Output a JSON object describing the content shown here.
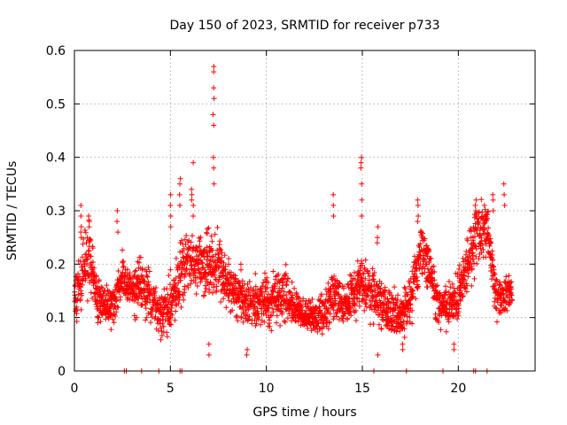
{
  "chart_data": {
    "type": "scatter",
    "title": "Day 150 of 2023, SRMTID for receiver p733",
    "xlabel": "GPS time / hours",
    "ylabel": "SRMTID / TECUs",
    "xlim": [
      0,
      24
    ],
    "ylim": [
      0,
      0.6
    ],
    "x_ticks": [
      0,
      5,
      10,
      15,
      20
    ],
    "x_tick_labels": [
      "0",
      "5",
      "10",
      "15",
      "20"
    ],
    "y_ticks": [
      0,
      0.1,
      0.2,
      0.3,
      0.4,
      0.5,
      0.6
    ],
    "y_tick_labels": [
      "0",
      "0.1",
      "0.2",
      "0.3",
      "0.4",
      "0.5",
      "0.6"
    ],
    "grid": true,
    "marker": "plus",
    "color": "#ff0000",
    "data_span_hours": [
      0,
      22.8
    ],
    "typical_range": [
      0.05,
      0.25
    ],
    "zero_value_times": [
      2.6,
      2.7,
      3.5,
      4.4,
      5.5,
      5.6,
      15.6,
      17.3,
      19.2,
      20.8,
      20.9,
      21.5
    ],
    "envelope": [
      {
        "x": 0.0,
        "mean": 0.13,
        "spread": 0.05
      },
      {
        "x": 0.5,
        "mean": 0.19,
        "spread": 0.07
      },
      {
        "x": 0.8,
        "mean": 0.22,
        "spread": 0.07
      },
      {
        "x": 1.2,
        "mean": 0.13,
        "spread": 0.04
      },
      {
        "x": 2.0,
        "mean": 0.12,
        "spread": 0.04
      },
      {
        "x": 2.5,
        "mean": 0.18,
        "spread": 0.05
      },
      {
        "x": 3.0,
        "mean": 0.15,
        "spread": 0.05
      },
      {
        "x": 3.5,
        "mean": 0.16,
        "spread": 0.05
      },
      {
        "x": 4.0,
        "mean": 0.14,
        "spread": 0.05
      },
      {
        "x": 4.5,
        "mean": 0.1,
        "spread": 0.04
      },
      {
        "x": 5.0,
        "mean": 0.13,
        "spread": 0.06
      },
      {
        "x": 5.5,
        "mean": 0.17,
        "spread": 0.07
      },
      {
        "x": 6.0,
        "mean": 0.21,
        "spread": 0.06
      },
      {
        "x": 6.5,
        "mean": 0.19,
        "spread": 0.06
      },
      {
        "x": 7.0,
        "mean": 0.2,
        "spread": 0.07
      },
      {
        "x": 7.5,
        "mean": 0.2,
        "spread": 0.06
      },
      {
        "x": 8.0,
        "mean": 0.16,
        "spread": 0.05
      },
      {
        "x": 9.0,
        "mean": 0.13,
        "spread": 0.05
      },
      {
        "x": 10.0,
        "mean": 0.13,
        "spread": 0.05
      },
      {
        "x": 11.0,
        "mean": 0.14,
        "spread": 0.05
      },
      {
        "x": 12.0,
        "mean": 0.1,
        "spread": 0.03
      },
      {
        "x": 13.0,
        "mean": 0.11,
        "spread": 0.04
      },
      {
        "x": 13.5,
        "mean": 0.14,
        "spread": 0.05
      },
      {
        "x": 14.0,
        "mean": 0.12,
        "spread": 0.04
      },
      {
        "x": 15.0,
        "mean": 0.17,
        "spread": 0.06
      },
      {
        "x": 16.0,
        "mean": 0.12,
        "spread": 0.05
      },
      {
        "x": 17.0,
        "mean": 0.1,
        "spread": 0.04
      },
      {
        "x": 17.5,
        "mean": 0.13,
        "spread": 0.05
      },
      {
        "x": 18.0,
        "mean": 0.23,
        "spread": 0.06
      },
      {
        "x": 18.5,
        "mean": 0.19,
        "spread": 0.05
      },
      {
        "x": 19.0,
        "mean": 0.12,
        "spread": 0.04
      },
      {
        "x": 19.5,
        "mean": 0.12,
        "spread": 0.04
      },
      {
        "x": 20.0,
        "mean": 0.14,
        "spread": 0.05
      },
      {
        "x": 20.5,
        "mean": 0.2,
        "spread": 0.06
      },
      {
        "x": 21.0,
        "mean": 0.26,
        "spread": 0.06
      },
      {
        "x": 21.5,
        "mean": 0.27,
        "spread": 0.05
      },
      {
        "x": 22.0,
        "mean": 0.13,
        "spread": 0.04
      },
      {
        "x": 22.5,
        "mean": 0.15,
        "spread": 0.04
      },
      {
        "x": 22.8,
        "mean": 0.15,
        "spread": 0.03
      }
    ],
    "spikes": [
      {
        "x": 0.35,
        "values": [
          0.31,
          0.29,
          0.27,
          0.26,
          0.25
        ]
      },
      {
        "x": 0.75,
        "values": [
          0.29,
          0.28,
          0.27
        ]
      },
      {
        "x": 2.25,
        "values": [
          0.3,
          0.28,
          0.26
        ]
      },
      {
        "x": 5.0,
        "values": [
          0.33,
          0.31,
          0.29,
          0.27
        ]
      },
      {
        "x": 5.5,
        "values": [
          0.36,
          0.35,
          0.33,
          0.31
        ]
      },
      {
        "x": 6.2,
        "values": [
          0.39,
          0.31,
          0.29
        ]
      },
      {
        "x": 6.1,
        "values": [
          0.34,
          0.33,
          0.32
        ]
      },
      {
        "x": 7.25,
        "values": [
          0.57,
          0.56,
          0.53,
          0.51,
          0.48,
          0.46,
          0.4,
          0.38,
          0.35
        ]
      },
      {
        "x": 13.5,
        "values": [
          0.33,
          0.31,
          0.29
        ]
      },
      {
        "x": 14.95,
        "values": [
          0.4,
          0.39,
          0.38,
          0.35,
          0.32,
          0.29
        ]
      },
      {
        "x": 15.8,
        "values": [
          0.27,
          0.25,
          0.24
        ]
      },
      {
        "x": 17.9,
        "values": [
          0.32,
          0.31,
          0.29,
          0.28
        ]
      },
      {
        "x": 20.9,
        "values": [
          0.32,
          0.31,
          0.3,
          0.29
        ]
      },
      {
        "x": 21.8,
        "values": [
          0.33,
          0.32,
          0.3
        ]
      },
      {
        "x": 22.4,
        "values": [
          0.35,
          0.33,
          0.31
        ]
      }
    ],
    "lows": [
      {
        "x": 7.0,
        "values": [
          0.03,
          0.05
        ]
      },
      {
        "x": 9.0,
        "values": [
          0.03,
          0.04
        ]
      },
      {
        "x": 15.8,
        "values": [
          0.03
        ]
      },
      {
        "x": 17.1,
        "values": [
          0.05,
          0.04
        ]
      },
      {
        "x": 19.8,
        "values": [
          0.05,
          0.04
        ]
      }
    ],
    "seed": 150
  }
}
